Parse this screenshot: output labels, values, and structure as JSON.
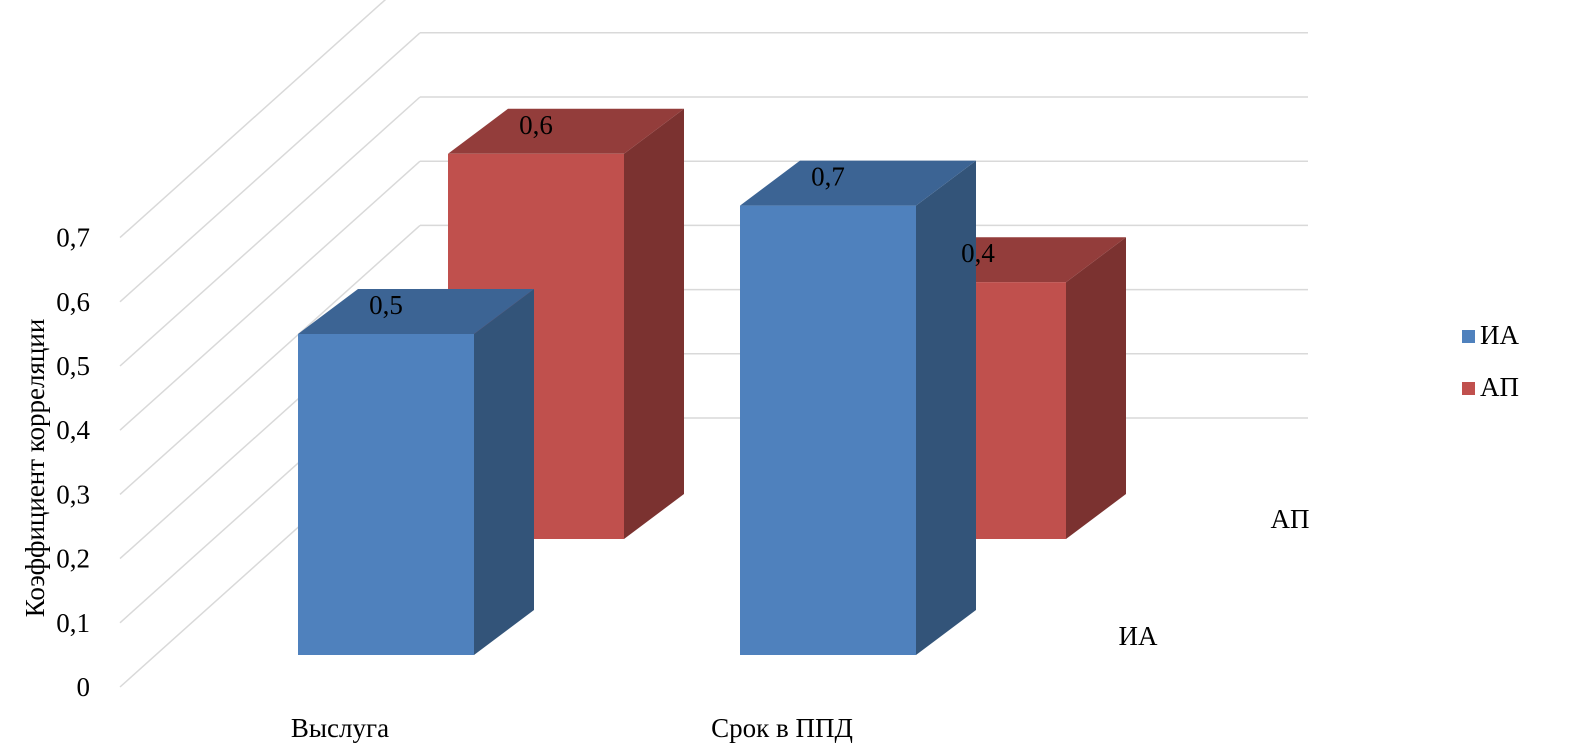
{
  "chart_data": {
    "type": "bar",
    "subtype": "3d-clustered-column",
    "categories": [
      "Выслуга",
      "Срок в ППД"
    ],
    "series": [
      {
        "name": "ИА",
        "values": [
          0.5,
          0.7
        ],
        "data_labels": [
          "0,5",
          "0,7"
        ],
        "color": "#4F81BD",
        "color_side": "#335479",
        "color_top": "#3C6494"
      },
      {
        "name": "АП",
        "values": [
          0.6,
          0.4
        ],
        "data_labels": [
          "0,6",
          "0,4"
        ],
        "color": "#C0504D",
        "color_side": "#7B3230",
        "color_top": "#933D3B"
      }
    ],
    "title": "",
    "ylabel": "Коэффициент корреляции",
    "ylim": [
      0,
      0.7
    ],
    "yticks": [
      {
        "value": 0,
        "label": "0"
      },
      {
        "value": 0.1,
        "label": "0,1"
      },
      {
        "value": 0.2,
        "label": "0,2"
      },
      {
        "value": 0.3,
        "label": "0,3"
      },
      {
        "value": 0.4,
        "label": "0,4"
      },
      {
        "value": 0.5,
        "label": "0,5"
      },
      {
        "value": 0.6,
        "label": "0,6"
      },
      {
        "value": 0.7,
        "label": "0,7"
      }
    ],
    "depth_axis_labels": [
      "ИА",
      "АП"
    ],
    "grid": true,
    "legend": {
      "position": "right",
      "entries": [
        "ИА",
        "АП"
      ]
    }
  }
}
